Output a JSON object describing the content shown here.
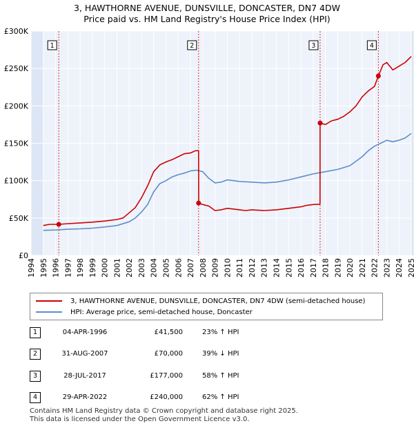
{
  "title_line1": "3, HAWTHORNE AVENUE, DUNSVILLE, DONCASTER, DN7 4DW",
  "title_line2": "Price paid vs. HM Land Registry's House Price Index (HPI)",
  "colors": {
    "property": "#cc0000",
    "hpi": "#5b8ec9",
    "band": "#dde6f5",
    "grid": "#ffffff",
    "plot_bg": "#eef2fa",
    "marker_line": "#dd3333"
  },
  "chart_data": {
    "type": "line",
    "xlim": [
      1994,
      2025
    ],
    "ylim": [
      0,
      300000
    ],
    "x_ticks": [
      "1994",
      "1995",
      "1996",
      "1997",
      "1998",
      "1999",
      "2000",
      "2001",
      "2002",
      "2003",
      "2004",
      "2005",
      "2006",
      "2007",
      "2008",
      "2009",
      "2010",
      "2011",
      "2012",
      "2013",
      "2014",
      "2015",
      "2016",
      "2017",
      "2018",
      "2019",
      "2020",
      "2021",
      "2022",
      "2023",
      "2024",
      "2025"
    ],
    "y_ticks": [
      {
        "value": 0,
        "label": "£0"
      },
      {
        "value": 50000,
        "label": "£50K"
      },
      {
        "value": 100000,
        "label": "£100K"
      },
      {
        "value": 150000,
        "label": "£150K"
      },
      {
        "value": 200000,
        "label": "£200K"
      },
      {
        "value": 250000,
        "label": "£250K"
      },
      {
        "value": 300000,
        "label": "£300K"
      }
    ],
    "series": [
      {
        "name": "3, HAWTHORNE AVENUE, DUNSVILLE, DONCASTER, DN7 4DW (semi-detached house)",
        "color": "#cc0000",
        "points": [
          [
            1995.0,
            40000
          ],
          [
            1995.5,
            41500
          ],
          [
            1996.26,
            41500
          ],
          [
            1997.0,
            42500
          ],
          [
            1998.0,
            43500
          ],
          [
            1999.0,
            44500
          ],
          [
            2000.0,
            46000
          ],
          [
            2001.0,
            48000
          ],
          [
            2001.5,
            50000
          ],
          [
            2002.0,
            57000
          ],
          [
            2002.5,
            64000
          ],
          [
            2003.0,
            77000
          ],
          [
            2003.5,
            93000
          ],
          [
            2004.0,
            112000
          ],
          [
            2004.5,
            121000
          ],
          [
            2005.0,
            125000
          ],
          [
            2005.5,
            128000
          ],
          [
            2006.0,
            132000
          ],
          [
            2006.5,
            136000
          ],
          [
            2007.0,
            137000
          ],
          [
            2007.4,
            140000
          ],
          [
            2007.66,
            140000
          ],
          [
            2007.67,
            70000
          ],
          [
            2008.0,
            68000
          ],
          [
            2008.5,
            66000
          ],
          [
            2009.0,
            60000
          ],
          [
            2009.5,
            61000
          ],
          [
            2010.0,
            63000
          ],
          [
            2010.5,
            62000
          ],
          [
            2011.0,
            61000
          ],
          [
            2011.5,
            60000
          ],
          [
            2012.0,
            61000
          ],
          [
            2013.0,
            60000
          ],
          [
            2014.0,
            61000
          ],
          [
            2015.0,
            63000
          ],
          [
            2016.0,
            65000
          ],
          [
            2016.5,
            67000
          ],
          [
            2017.0,
            68000
          ],
          [
            2017.56,
            68500
          ],
          [
            2017.57,
            177000
          ],
          [
            2018.0,
            175000
          ],
          [
            2018.5,
            180000
          ],
          [
            2019.0,
            182000
          ],
          [
            2019.5,
            186000
          ],
          [
            2020.0,
            192000
          ],
          [
            2020.5,
            200000
          ],
          [
            2021.0,
            212000
          ],
          [
            2021.5,
            220000
          ],
          [
            2022.0,
            226000
          ],
          [
            2022.32,
            240000
          ],
          [
            2022.7,
            255000
          ],
          [
            2023.0,
            258000
          ],
          [
            2023.5,
            248000
          ],
          [
            2024.0,
            253000
          ],
          [
            2024.5,
            258000
          ],
          [
            2025.0,
            266000
          ]
        ]
      },
      {
        "name": "HPI: Average price, semi-detached house, Doncaster",
        "color": "#5b8ec9",
        "points": [
          [
            1995.0,
            33500
          ],
          [
            1996.0,
            34000
          ],
          [
            1997.0,
            35000
          ],
          [
            1998.0,
            35500
          ],
          [
            1999.0,
            36500
          ],
          [
            2000.0,
            38000
          ],
          [
            2001.0,
            40000
          ],
          [
            2002.0,
            45000
          ],
          [
            2002.5,
            50000
          ],
          [
            2003.0,
            58000
          ],
          [
            2003.5,
            68000
          ],
          [
            2004.0,
            85000
          ],
          [
            2004.5,
            96000
          ],
          [
            2005.0,
            100000
          ],
          [
            2005.5,
            105000
          ],
          [
            2006.0,
            108000
          ],
          [
            2006.5,
            110000
          ],
          [
            2007.0,
            113000
          ],
          [
            2007.5,
            114000
          ],
          [
            2008.0,
            112000
          ],
          [
            2008.5,
            103000
          ],
          [
            2009.0,
            97000
          ],
          [
            2009.5,
            98000
          ],
          [
            2010.0,
            101000
          ],
          [
            2011.0,
            99000
          ],
          [
            2012.0,
            98000
          ],
          [
            2013.0,
            97000
          ],
          [
            2014.0,
            98000
          ],
          [
            2015.0,
            101000
          ],
          [
            2016.0,
            105000
          ],
          [
            2017.0,
            109000
          ],
          [
            2018.0,
            112000
          ],
          [
            2019.0,
            115000
          ],
          [
            2020.0,
            120000
          ],
          [
            2020.5,
            126000
          ],
          [
            2021.0,
            132000
          ],
          [
            2021.5,
            140000
          ],
          [
            2022.0,
            146000
          ],
          [
            2022.5,
            150000
          ],
          [
            2023.0,
            154000
          ],
          [
            2023.5,
            152000
          ],
          [
            2024.0,
            154000
          ],
          [
            2024.5,
            157000
          ],
          [
            2025.0,
            163000
          ]
        ]
      }
    ],
    "sale_markers": [
      {
        "label": "1",
        "x": 1996.26,
        "y": 41500
      },
      {
        "label": "2",
        "x": 2007.66,
        "y": 70000
      },
      {
        "label": "3",
        "x": 2017.57,
        "y": 177000
      },
      {
        "label": "4",
        "x": 2022.32,
        "y": 240000
      }
    ],
    "shaded_bands": [
      [
        1994,
        1995.0
      ],
      [
        2025.0,
        2025.2
      ]
    ]
  },
  "legend": {
    "property_label": "3, HAWTHORNE AVENUE, DUNSVILLE, DONCASTER, DN7 4DW (semi-detached house)",
    "hpi_label": "HPI: Average price, semi-detached house, Doncaster"
  },
  "sales": [
    {
      "num": "1",
      "date": "04-APR-1996",
      "price": "£41,500",
      "hpi": "23% ↑ HPI"
    },
    {
      "num": "2",
      "date": "31-AUG-2007",
      "price": "£70,000",
      "hpi": "39% ↓ HPI"
    },
    {
      "num": "3",
      "date": "28-JUL-2017",
      "price": "£177,000",
      "hpi": "58% ↑ HPI"
    },
    {
      "num": "4",
      "date": "29-APR-2022",
      "price": "£240,000",
      "hpi": "62% ↑ HPI"
    }
  ],
  "footer_line1": "Contains HM Land Registry data © Crown copyright and database right 2025.",
  "footer_line2": "This data is licensed under the Open Government Licence v3.0."
}
